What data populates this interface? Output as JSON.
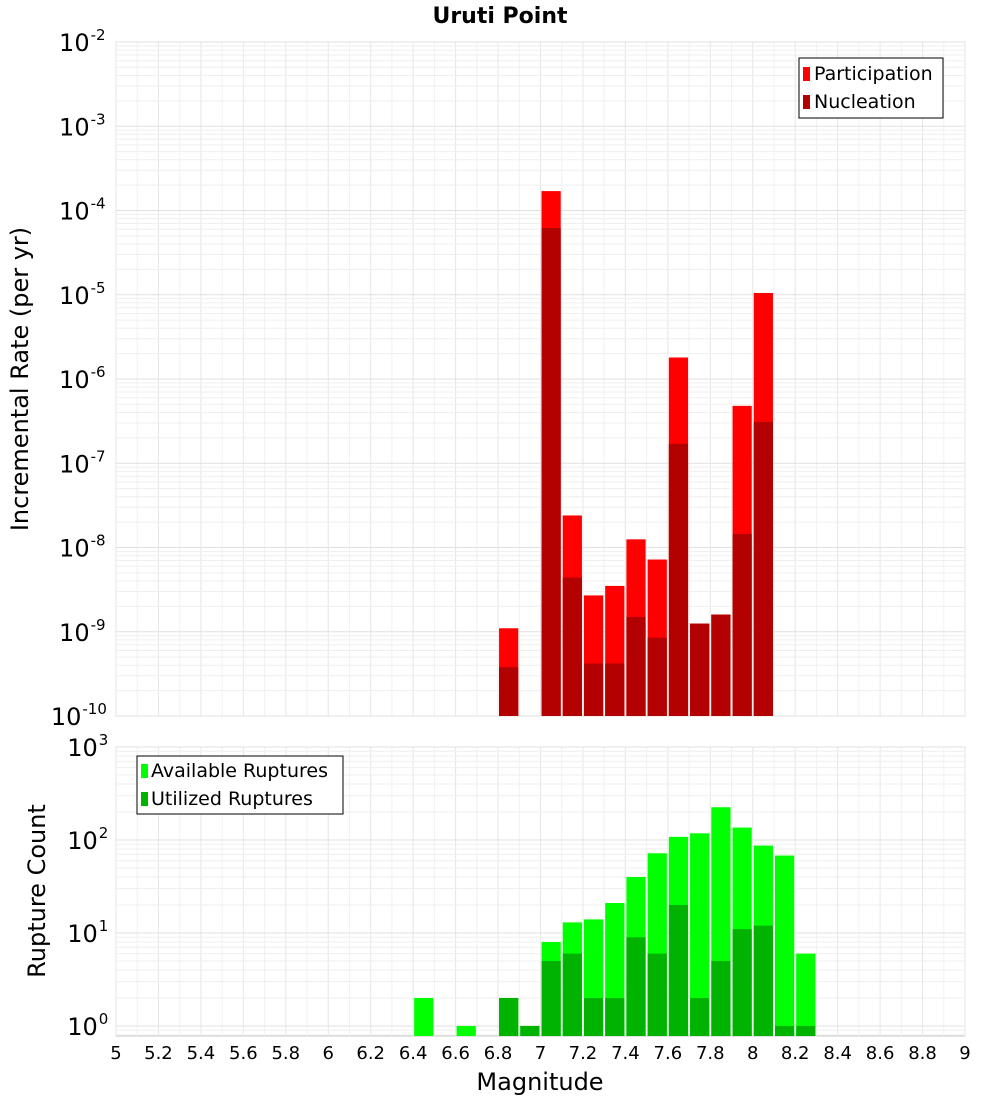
{
  "chart_data": [
    {
      "type": "bar",
      "title": "Uruti Point",
      "xlabel": "",
      "ylabel": "Incremental Rate (per yr)",
      "yscale": "log",
      "ylim": [
        1e-10,
        0.01
      ],
      "ytick_exponents": [
        "-10",
        "-9",
        "-8",
        "-7",
        "-6",
        "-5",
        "-4",
        "-3",
        "-2"
      ],
      "xlim": [
        5,
        9
      ],
      "bar_width": 0.1,
      "grid": true,
      "legend_position": "top-right",
      "series": [
        {
          "name": "Participation",
          "color": "#ff0000",
          "x": [
            6.85,
            7.05,
            7.15,
            7.25,
            7.35,
            7.45,
            7.55,
            7.65,
            7.75,
            7.85,
            7.95,
            8.05
          ],
          "values": [
            1.1e-09,
            0.00017,
            2.4e-08,
            2.7e-09,
            3.5e-09,
            1.25e-08,
            7.2e-09,
            1.8e-06,
            1.25e-09,
            1.6e-09,
            4.8e-07,
            1.05e-05
          ]
        },
        {
          "name": "Nucleation",
          "color": "#b30000",
          "x": [
            6.85,
            7.05,
            7.15,
            7.25,
            7.35,
            7.45,
            7.55,
            7.65,
            7.75,
            7.85,
            7.95,
            8.05
          ],
          "values": [
            3.8e-10,
            6.2e-05,
            4.4e-09,
            4.2e-10,
            4.2e-10,
            1.5e-09,
            8.5e-10,
            1.7e-07,
            1.25e-09,
            1.6e-09,
            1.45e-08,
            3.1e-07
          ]
        }
      ]
    },
    {
      "type": "bar",
      "title": "",
      "xlabel": "Magnitude",
      "ylabel": "Rupture Count",
      "yscale": "log",
      "ylim": [
        0.78,
        1000
      ],
      "ytick_exponents": [
        "0",
        "1",
        "2",
        "3"
      ],
      "xlim": [
        5,
        9
      ],
      "xticks": [
        "5",
        "5.2",
        "5.4",
        "5.6",
        "5.8",
        "6",
        "6.2",
        "6.4",
        "6.6",
        "6.8",
        "7",
        "7.2",
        "7.4",
        "7.6",
        "7.8",
        "8",
        "8.2",
        "8.4",
        "8.6",
        "8.8",
        "9"
      ],
      "bar_width": 0.1,
      "grid": true,
      "legend_position": "top-left",
      "series": [
        {
          "name": "Available Ruptures",
          "color": "#00ff00",
          "x": [
            6.45,
            6.65,
            6.85,
            6.95,
            7.05,
            7.15,
            7.25,
            7.35,
            7.45,
            7.55,
            7.65,
            7.75,
            7.85,
            7.95,
            8.05,
            8.15,
            8.25
          ],
          "values": [
            2,
            1,
            2,
            1,
            8,
            13,
            14,
            21,
            40,
            72,
            108,
            118,
            225,
            136,
            87,
            68,
            6
          ]
        },
        {
          "name": "Utilized Ruptures",
          "color": "#00b300",
          "x": [
            6.45,
            6.65,
            6.85,
            6.95,
            7.05,
            7.15,
            7.25,
            7.35,
            7.45,
            7.55,
            7.65,
            7.75,
            7.85,
            7.95,
            8.05,
            8.15,
            8.25
          ],
          "values": [
            0,
            0,
            2,
            1,
            5,
            6,
            2,
            2,
            9,
            6,
            20,
            2,
            5,
            11,
            12,
            1,
            1
          ]
        }
      ]
    }
  ]
}
